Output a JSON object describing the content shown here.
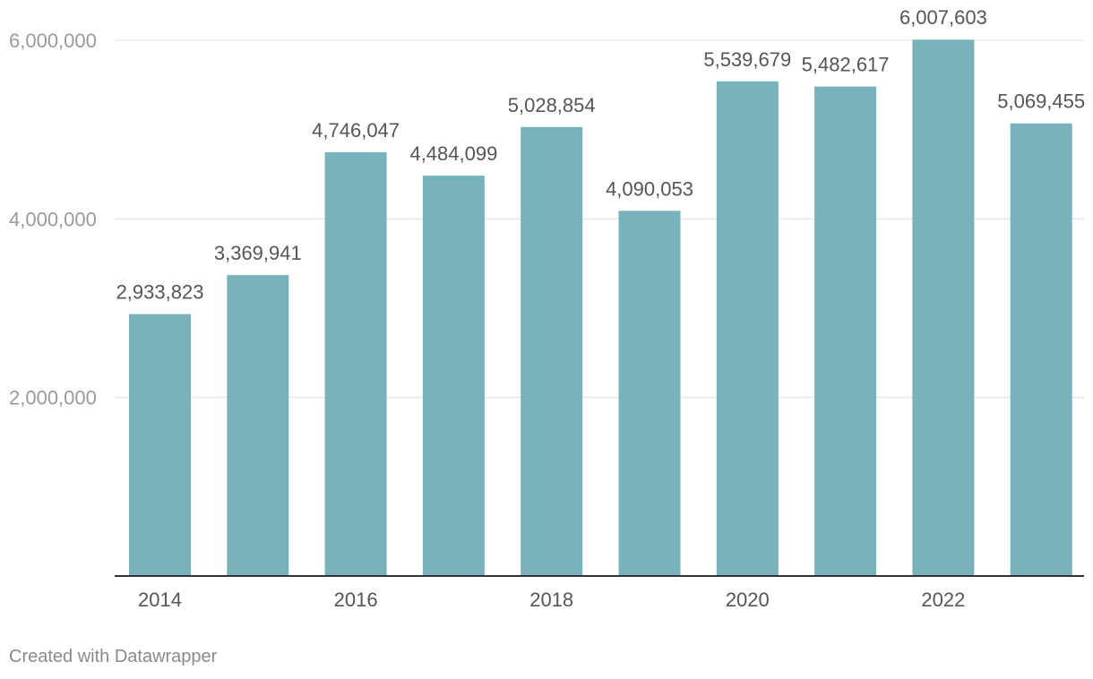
{
  "chart_data": {
    "type": "bar",
    "categories": [
      "2014",
      "2015",
      "2016",
      "2017",
      "2018",
      "2019",
      "2020",
      "2021",
      "2022",
      "2023"
    ],
    "values": [
      2933823,
      3369941,
      4746047,
      4484099,
      5028854,
      4090053,
      5539679,
      5482617,
      6007603,
      5069455
    ],
    "value_labels": [
      "2,933,823",
      "3,369,941",
      "4,746,047",
      "4,484,099",
      "5,028,854",
      "4,090,053",
      "5,539,679",
      "5,482,617",
      "6,007,603",
      "5,069,455"
    ],
    "x_tick_labels": [
      "2014",
      "",
      "2016",
      "",
      "2018",
      "",
      "2020",
      "",
      "2022",
      ""
    ],
    "y_ticks": [
      2000000,
      4000000,
      6000000
    ],
    "y_tick_labels": [
      "2,000,000",
      "4,000,000",
      "6,000,000"
    ],
    "ylim": [
      0,
      6000000
    ],
    "bar_color": "#78b3bc",
    "grid": true,
    "title": "",
    "xlabel": "",
    "ylabel": ""
  },
  "footer": {
    "credit": "Created with Datawrapper"
  }
}
